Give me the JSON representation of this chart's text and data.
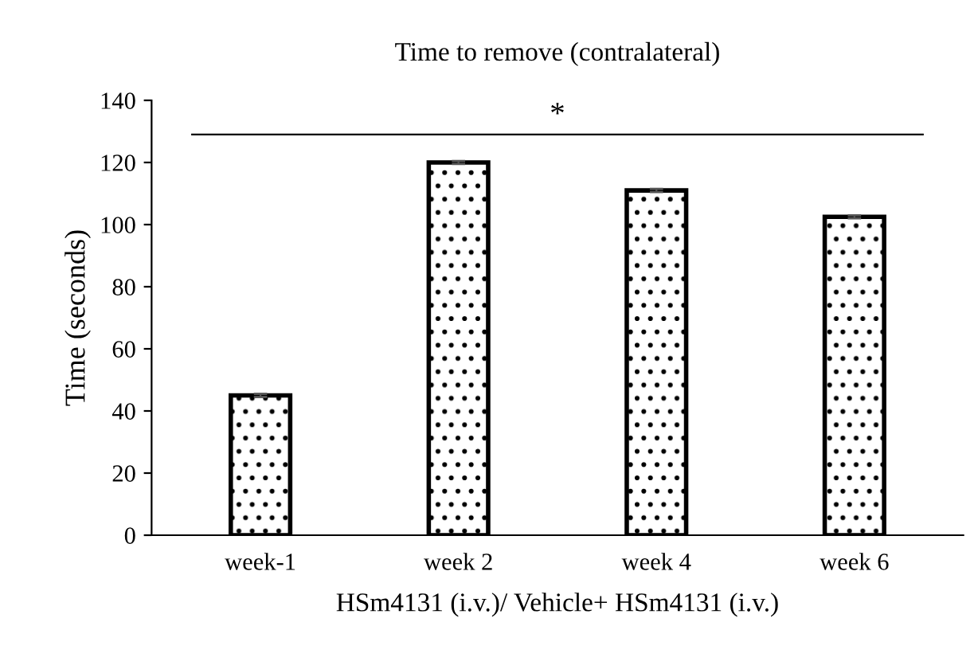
{
  "chart_data": {
    "type": "bar",
    "title": "Time to remove (contralateral)",
    "xlabel": "HSm4131 (i.v.)/ Vehicle+ HSm4131 (i.v.)",
    "ylabel": "Time (seconds)",
    "categories": [
      "week-1",
      "week 2",
      "week 4",
      "week 6"
    ],
    "values": [
      45,
      120,
      111,
      102.5
    ],
    "errors": [
      0.5,
      0.5,
      0.5,
      0.5
    ],
    "color": "#000000",
    "ylim": [
      0,
      140
    ],
    "yticks": [
      0,
      20,
      40,
      60,
      80,
      100,
      120,
      140
    ],
    "grid": false,
    "legend": false,
    "ref_lines": [
      {
        "axis": "y",
        "value": 129,
        "label": "*",
        "color": "#000000"
      }
    ]
  }
}
